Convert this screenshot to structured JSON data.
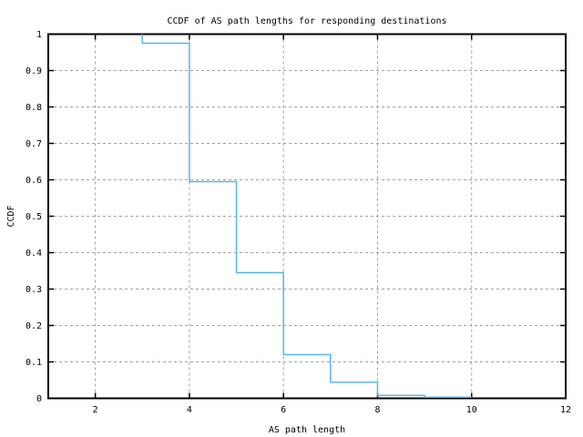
{
  "chart_data": {
    "type": "line",
    "style": "step",
    "title": "CCDF of AS path lengths for responding destinations",
    "xlabel": "AS path length",
    "ylabel": "CCDF",
    "xlim": [
      1,
      12
    ],
    "ylim": [
      0,
      1
    ],
    "xticks": [
      2,
      4,
      6,
      8,
      10,
      12
    ],
    "ytick_values": [
      0,
      0.1,
      0.2,
      0.3,
      0.4,
      0.5,
      0.6,
      0.7,
      0.8,
      0.9,
      1
    ],
    "ytick_labels": [
      "0",
      "0.1",
      "0.2",
      "0.3",
      "0.4",
      "0.5",
      "0.6",
      "0.7",
      "0.8",
      "0.9",
      "1"
    ],
    "grid": "dashed",
    "legend": "none",
    "colors": {
      "line": "#5ab4e6",
      "grid": "#a0a0a0",
      "axis": "#000000",
      "background": "#ffffff"
    },
    "series": [
      {
        "name": "CCDF of AS path lengths",
        "points": [
          [
            3,
            1.0
          ],
          [
            3,
            0.975
          ],
          [
            4,
            0.975
          ],
          [
            4,
            0.595
          ],
          [
            5,
            0.595
          ],
          [
            5,
            0.345
          ],
          [
            6,
            0.345
          ],
          [
            6,
            0.12
          ],
          [
            7,
            0.12
          ],
          [
            7,
            0.044
          ],
          [
            8,
            0.044
          ],
          [
            8,
            0.008
          ],
          [
            9,
            0.008
          ],
          [
            9,
            0.003
          ],
          [
            10,
            0.003
          ]
        ]
      }
    ]
  }
}
